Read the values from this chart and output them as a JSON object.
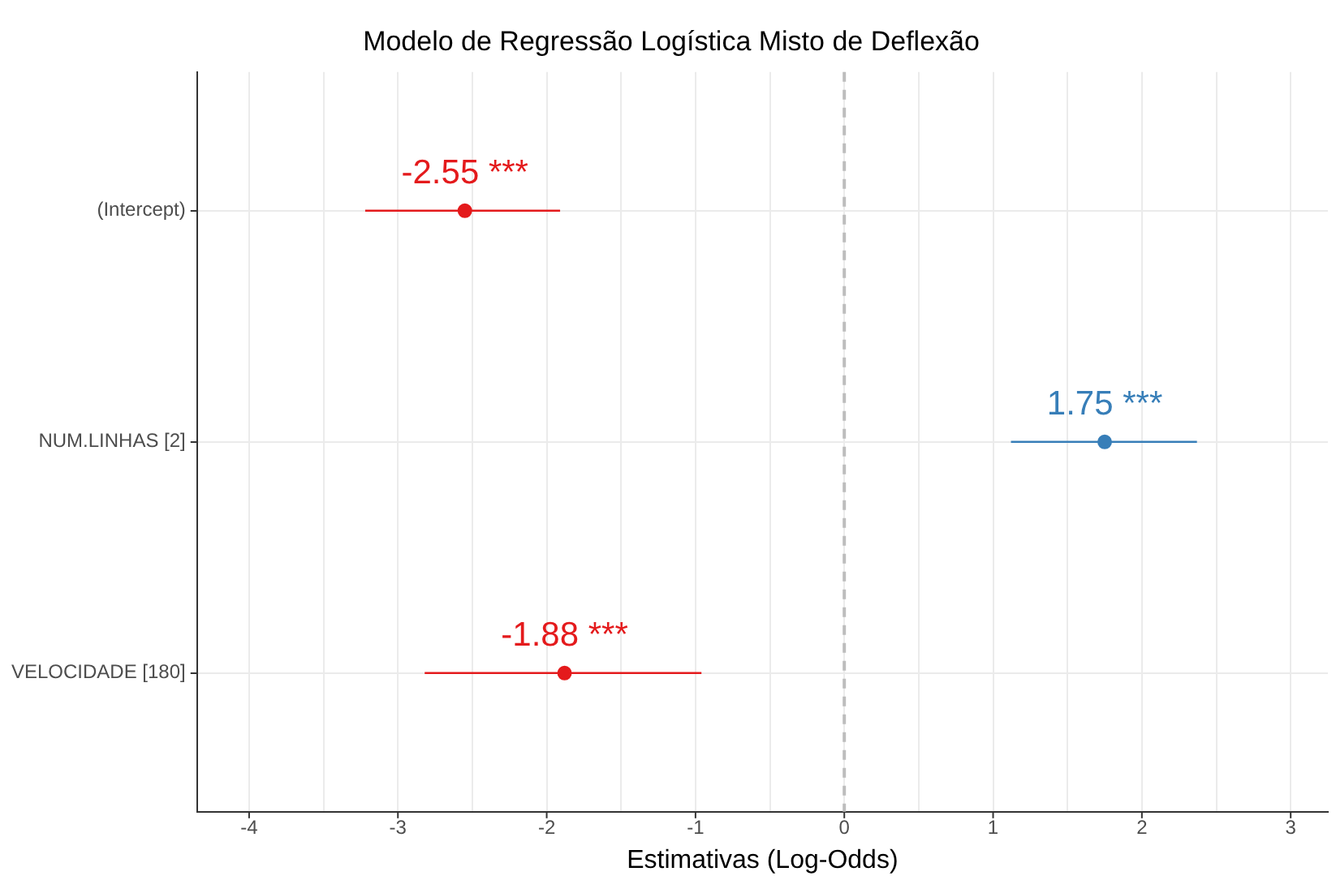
{
  "chart_data": {
    "type": "scatter",
    "orientation": "horizontal",
    "title": "Modelo de Regressão Logística Misto de Deflexão",
    "xlabel": "Estimativas (Log-Odds)",
    "categories": [
      "(Intercept)",
      "NUM.LINHAS [2]",
      "VELOCIDADE [180]"
    ],
    "values": [
      -2.55,
      1.75,
      -1.88
    ],
    "errors": [
      [
        -3.22,
        -1.91
      ],
      [
        1.12,
        2.37
      ],
      [
        -2.82,
        -0.96
      ]
    ],
    "colors": [
      "#e41a1c",
      "#377eb8",
      "#e41a1c"
    ],
    "value_labels": [
      "-2.55 ***",
      "1.75 ***",
      "-1.88 ***"
    ],
    "xlim": [
      -4.35,
      3.25
    ],
    "xticks": [
      -4,
      {
        "value": -3.5,
        "label": null
      },
      -3,
      {
        "value": -2.5,
        "label": null
      },
      -2,
      {
        "value": -1.5,
        "label": null
      },
      -1,
      {
        "value": -0.5,
        "label": null
      },
      0,
      {
        "value": 0.5,
        "label": null
      },
      1,
      {
        "value": 1.5,
        "label": null
      },
      2,
      {
        "value": 2.5,
        "label": null
      },
      3
    ],
    "ref_lines": [
      {
        "axis": "x",
        "value": 0,
        "color": "#bdbdbd",
        "line_style": "dashed"
      }
    ],
    "grid": true,
    "legend": false,
    "marker": "circle"
  }
}
